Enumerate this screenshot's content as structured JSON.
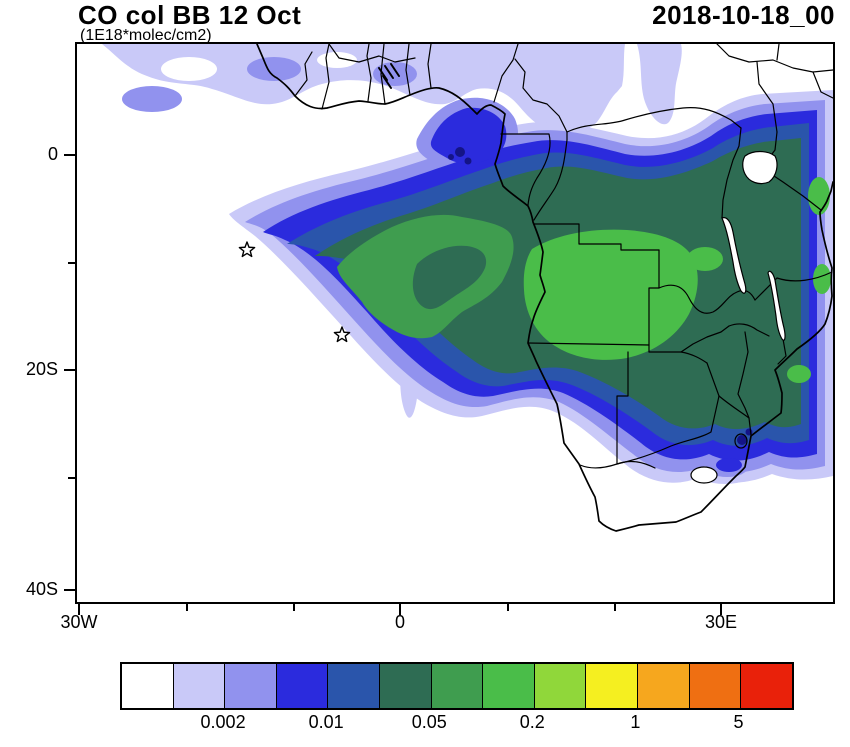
{
  "header": {
    "title": "CO col BB 12 Oct",
    "units_line": "(1E18*molec/cm2)",
    "datetime": "2018-10-18_00"
  },
  "map": {
    "y_ticks": [
      {
        "label": "0"
      },
      {
        "label": "20S"
      },
      {
        "label": "40S"
      }
    ],
    "x_ticks": [
      {
        "label": "30W"
      },
      {
        "label": "0"
      },
      {
        "label": "30E"
      }
    ],
    "star_marker_count": 2,
    "hotspot_color": "#141487",
    "coastline_color": "#000000"
  },
  "colorbar": {
    "colors": [
      "#ffffff",
      "#c9c9f8",
      "#9192ee",
      "#2b2bdd",
      "#2a55ab",
      "#2e6c53",
      "#3f9d4f",
      "#4abd49",
      "#90d73a",
      "#f5ef20",
      "#f6a71e",
      "#ef6f12",
      "#e9210a"
    ],
    "labels": [
      {
        "text": "0.002",
        "boundary": 2
      },
      {
        "text": "0.01",
        "boundary": 4
      },
      {
        "text": "0.05",
        "boundary": 6
      },
      {
        "text": "0.2",
        "boundary": 8
      },
      {
        "text": "1",
        "boundary": 10
      },
      {
        "text": "5",
        "boundary": 12
      }
    ]
  },
  "chart_data": {
    "type": "heatmap",
    "title": "CO col BB 12 Oct",
    "units": "1E18*molec/cm2",
    "valid_time": "2018-10-18_00",
    "projection": "cylindrical lat-lon map of Africa and the South Atlantic",
    "x_axis": {
      "label": "longitude",
      "tick_labels": [
        "30W",
        "0",
        "30E"
      ],
      "range": [
        "~31W",
        "~40E"
      ]
    },
    "y_axis": {
      "label": "latitude",
      "tick_labels": [
        "0",
        "20S",
        "40S"
      ],
      "range": [
        "~10N",
        "~42S"
      ]
    },
    "colorbar": {
      "tick_labels": [
        "0.002",
        "0.01",
        "0.05",
        "0.2",
        "1",
        "5"
      ],
      "n_bins": 13,
      "colors": [
        "#ffffff",
        "#c9c9f8",
        "#9192ee",
        "#2b2bdd",
        "#2a55ab",
        "#2e6c53",
        "#3f9d4f",
        "#4abd49",
        "#90d73a",
        "#f5ef20",
        "#f6a71e",
        "#ef6f12",
        "#e9210a"
      ],
      "label_boundaries": [
        2,
        4,
        6,
        8,
        10,
        12
      ]
    },
    "content_summary": "Biomass-burning CO column plume: maximum values (green, ~0.1-0.5) over Angola / Zambia / southern DR Congo extending west over the South Atlantic as a hooked plume; blue-to-lavender gradient (0.002-0.05) fringes the plume, covers the Gulf of Guinea coast, East Africa and the Mozambique coast; faint lavender band across the Sahel at the top of the map.",
    "markers": [
      "star at ~14.5W, 8.6S",
      "star at ~5.6W, 16.6S"
    ]
  }
}
